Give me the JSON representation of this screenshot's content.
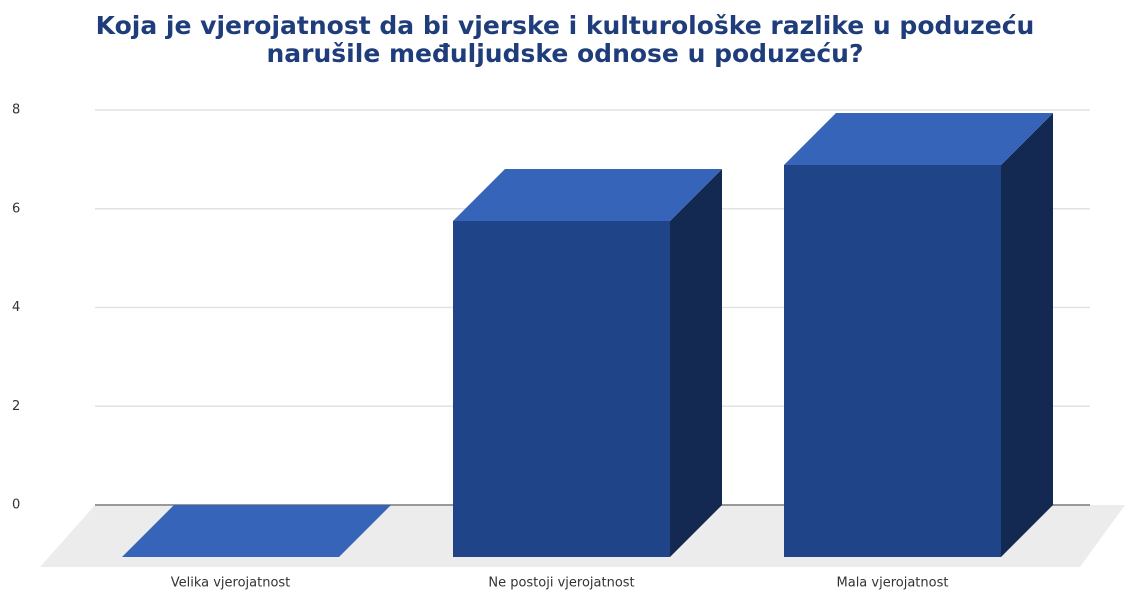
{
  "chart_data": {
    "type": "bar3d",
    "title": "Koja je vjerojatnost da bi vjerske i kulturološke razlike u poduzeću narušile međuljudske odnose u poduzeću?",
    "categories": [
      "Velika vjerojatnost",
      "Ne postoji vjerojatnost",
      "Mala vjerojatnost"
    ],
    "values": [
      0,
      6,
      7
    ],
    "color": "#1f4488",
    "ylim": [
      0,
      8
    ],
    "yticks": [
      0,
      2,
      4,
      6,
      8
    ],
    "grid": true
  }
}
